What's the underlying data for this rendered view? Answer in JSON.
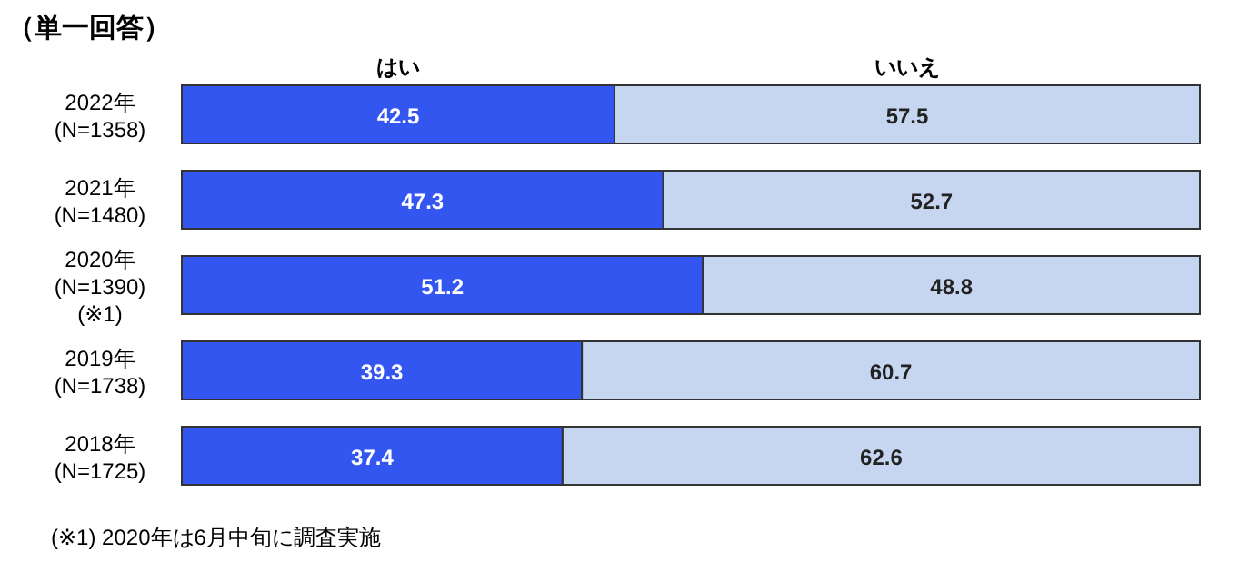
{
  "chart_data": {
    "type": "bar",
    "orientation": "horizontal",
    "stacked": true,
    "data_labels": true,
    "legend": false,
    "title": "（単一回答）",
    "categories": [
      "2022年\n(N=1358)",
      "2021年\n(N=1480)",
      "2020年\n(N=1390)\n(※1)",
      "2019年\n(N=1738)",
      "2018年\n(N=1725)"
    ],
    "series": [
      {
        "name": "はい",
        "color": "#3355f0",
        "values": [
          42.5,
          47.3,
          51.2,
          39.3,
          37.4
        ]
      },
      {
        "name": "いいえ",
        "color": "#c6d5f0",
        "values": [
          57.5,
          52.7,
          48.8,
          60.7,
          62.6
        ]
      }
    ],
    "annotations": [
      "(※1) 2020年は6月中旬に調査実施"
    ]
  }
}
